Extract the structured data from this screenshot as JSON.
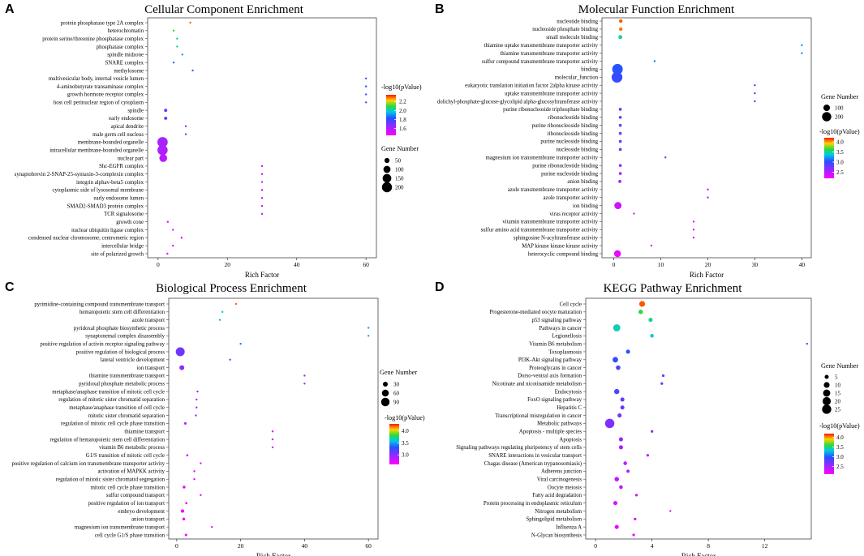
{
  "chart_data": [
    {
      "id": "A",
      "type": "scatter",
      "panel_label": "A",
      "title": "Cellular Component Enrichment",
      "xlabel": "Rich Factor",
      "xlim": [
        -3,
        63
      ],
      "xticks": [
        0,
        20,
        40,
        60
      ],
      "size_legend_title": "Gene Number",
      "size_legend_values": [
        50,
        100,
        150,
        200
      ],
      "size_range": [
        0,
        220
      ],
      "color_legend_title": "-log10(pValue)",
      "color_range": [
        1.45,
        2.35
      ],
      "color_ticks": [
        2.2,
        2.0,
        1.8,
        1.6
      ],
      "points": [
        {
          "term": "protein phosphatase type 2A complex",
          "x": 9.3,
          "size": 2,
          "p": 2.3
        },
        {
          "term": "heterochromatin",
          "x": 4.5,
          "size": 3,
          "p": 2.1
        },
        {
          "term": "protein serine/threonine phosphatase complex",
          "x": 5.5,
          "size": 3,
          "p": 2.05
        },
        {
          "term": "phosphatase complex",
          "x": 5.5,
          "size": 3,
          "p": 2.05
        },
        {
          "term": "spindle midzone",
          "x": 7,
          "size": 2,
          "p": 1.9
        },
        {
          "term": "SNARE complex",
          "x": 4.5,
          "size": 3,
          "p": 1.85
        },
        {
          "term": "methylosome",
          "x": 10,
          "size": 2,
          "p": 1.85
        },
        {
          "term": "multivesicular body, internal vesicle lumen",
          "x": 60,
          "size": 1,
          "p": 1.8
        },
        {
          "term": "4-aminobutyrate transaminase complex",
          "x": 60,
          "size": 1,
          "p": 1.8
        },
        {
          "term": "growth hormone receptor complex",
          "x": 60,
          "size": 1,
          "p": 1.8
        },
        {
          "term": "host cell perinuclear region of cytoplasm",
          "x": 60,
          "size": 1,
          "p": 1.8
        },
        {
          "term": "spindle",
          "x": 2.2,
          "size": 20,
          "p": 1.7
        },
        {
          "term": "early endosome",
          "x": 2.2,
          "size": 20,
          "p": 1.7
        },
        {
          "term": "apical dendrite",
          "x": 8,
          "size": 3,
          "p": 1.65
        },
        {
          "term": "male germ cell nucleus",
          "x": 8,
          "size": 3,
          "p": 1.65
        },
        {
          "term": "membrane-bounded organelle",
          "x": 1.3,
          "size": 210,
          "p": 1.62
        },
        {
          "term": "intracellular membrane-bounded organelle",
          "x": 1.3,
          "size": 205,
          "p": 1.6
        },
        {
          "term": "nuclear part",
          "x": 1.5,
          "size": 120,
          "p": 1.58
        },
        {
          "term": "Shc-EGFR complex",
          "x": 30,
          "size": 1,
          "p": 1.55
        },
        {
          "term": "synaptobrevin 2-SNAP-25-syntaxin-3-complexin complex",
          "x": 30,
          "size": 1,
          "p": 1.55
        },
        {
          "term": "integrin alphav-beta5 complex",
          "x": 30,
          "size": 1,
          "p": 1.55
        },
        {
          "term": "cytoplasmic side of lysosomal membrane",
          "x": 30,
          "size": 1,
          "p": 1.55
        },
        {
          "term": "early endosome lumen",
          "x": 30,
          "size": 1,
          "p": 1.55
        },
        {
          "term": "SMAD2-SMAD3 protein complex",
          "x": 30,
          "size": 1,
          "p": 1.55
        },
        {
          "term": "TCR signalosome",
          "x": 30,
          "size": 1,
          "p": 1.55
        },
        {
          "term": "growth cone",
          "x": 2.8,
          "size": 8,
          "p": 1.52
        },
        {
          "term": "nuclear ubiquitin ligase complex",
          "x": 4.3,
          "size": 3,
          "p": 1.52
        },
        {
          "term": "condensed nuclear chromosome, centromeric region",
          "x": 6.8,
          "size": 3,
          "p": 1.5
        },
        {
          "term": "intercellular bridge",
          "x": 4.3,
          "size": 4,
          "p": 1.5
        },
        {
          "term": "site of polarized growth",
          "x": 2.7,
          "size": 8,
          "p": 1.48
        }
      ]
    },
    {
      "id": "B",
      "type": "scatter",
      "panel_label": "B",
      "title": "Molecular Function Enrichment",
      "xlabel": "Rich Factor",
      "xlim": [
        -2.5,
        42
      ],
      "xticks": [
        0,
        10,
        20,
        30,
        40
      ],
      "size_legend_title": "Gene Number",
      "size_legend_values": [
        100,
        200
      ],
      "size_range": [
        0,
        260
      ],
      "color_legend_title": "-log10(pValue)",
      "color_range": [
        2.2,
        4.2
      ],
      "color_ticks": [
        4.0,
        3.5,
        3.0,
        2.5
      ],
      "points": [
        {
          "term": "nucleotide binding",
          "x": 1.5,
          "size": 30,
          "p": 4.1
        },
        {
          "term": "nucleoside phosphate binding",
          "x": 1.5,
          "size": 30,
          "p": 4.05
        },
        {
          "term": "small molecule binding",
          "x": 1.4,
          "size": 35,
          "p": 3.5
        },
        {
          "term": "thiamine uptake transmembrane transporter activity",
          "x": 40,
          "size": 1,
          "p": 3.2
        },
        {
          "term": "thiamine transmembrane transporter activity",
          "x": 40,
          "size": 1,
          "p": 3.2
        },
        {
          "term": "sulfur compound transmembrane transporter activity",
          "x": 8.7,
          "size": 2,
          "p": 3.15
        },
        {
          "term": "binding",
          "x": 0.8,
          "size": 260,
          "p": 3.05
        },
        {
          "term": "molecular_function",
          "x": 0.7,
          "size": 270,
          "p": 3.0
        },
        {
          "term": "eukaryotic translation initiation factor 2alpha kinase activity",
          "x": 30,
          "size": 1,
          "p": 2.95
        },
        {
          "term": "uptake transmembrane transporter activity",
          "x": 30,
          "size": 1,
          "p": 2.95
        },
        {
          "term": "dolichyl-phosphate-glucose-glycolipid alpha-glucosyltransferase activity",
          "x": 30,
          "size": 1,
          "p": 2.95
        },
        {
          "term": "purine ribonucleoside triphosphate binding",
          "x": 1.4,
          "size": 20,
          "p": 2.85
        },
        {
          "term": "ribonucleotide binding",
          "x": 1.4,
          "size": 20,
          "p": 2.8
        },
        {
          "term": "purine ribonucleoside binding",
          "x": 1.4,
          "size": 20,
          "p": 2.8
        },
        {
          "term": "ribonucleoside binding",
          "x": 1.4,
          "size": 20,
          "p": 2.8
        },
        {
          "term": "purine nucleoside binding",
          "x": 1.4,
          "size": 20,
          "p": 2.8
        },
        {
          "term": "nucleoside binding",
          "x": 1.4,
          "size": 20,
          "p": 2.8
        },
        {
          "term": "magnesium ion transmembrane transporter activity",
          "x": 11,
          "size": 2,
          "p": 2.7
        },
        {
          "term": "purine ribonucleotide binding",
          "x": 1.4,
          "size": 20,
          "p": 2.65
        },
        {
          "term": "purine nucleotide binding",
          "x": 1.4,
          "size": 20,
          "p": 2.6
        },
        {
          "term": "anion binding",
          "x": 1.3,
          "size": 22,
          "p": 2.55
        },
        {
          "term": "azole transmembrane transporter activity",
          "x": 20,
          "size": 1,
          "p": 2.45
        },
        {
          "term": "azole transporter activity",
          "x": 20,
          "size": 1,
          "p": 2.45
        },
        {
          "term": "ion binding",
          "x": 0.9,
          "size": 120,
          "p": 2.4
        },
        {
          "term": "virus receptor activity",
          "x": 4.3,
          "size": 3,
          "p": 2.4
        },
        {
          "term": "vitamin transmembrane transporter activity",
          "x": 17,
          "size": 1,
          "p": 2.35
        },
        {
          "term": "sulfur amino acid transmembrane transporter activity",
          "x": 17,
          "size": 1,
          "p": 2.35
        },
        {
          "term": "sphingosine N-acyltransferase activity",
          "x": 17,
          "size": 1,
          "p": 2.35
        },
        {
          "term": "MAP kinase kinase kinase activity",
          "x": 8,
          "size": 2,
          "p": 2.3
        },
        {
          "term": "heterocyclic compound binding",
          "x": 0.8,
          "size": 110,
          "p": 2.3
        }
      ]
    },
    {
      "id": "C",
      "type": "scatter",
      "panel_label": "C",
      "title": "Biological Process Enrichment",
      "xlabel": "Rich Factor",
      "xlim": [
        -2.5,
        63
      ],
      "xticks": [
        0,
        20,
        40,
        60
      ],
      "size_legend_title": "Gene Number",
      "size_legend_values": [
        30,
        60,
        90
      ],
      "size_range": [
        0,
        100
      ],
      "color_legend_title": "-log10(pValue)",
      "color_range": [
        2.6,
        4.3
      ],
      "color_ticks": [
        4.0,
        3.5,
        3.0
      ],
      "points": [
        {
          "term": "pyrimidine-containing compound transmembrane transport",
          "x": 18.6,
          "size": 2,
          "p": 4.2
        },
        {
          "term": "hematopoietic stem cell differentiation",
          "x": 14.3,
          "size": 2,
          "p": 3.6
        },
        {
          "term": "azole transport",
          "x": 13.5,
          "size": 2,
          "p": 3.55
        },
        {
          "term": "pyridoxal phosphate biosynthetic process",
          "x": 60,
          "size": 1,
          "p": 3.5
        },
        {
          "term": "synaptonemal complex disassembly",
          "x": 60,
          "size": 1,
          "p": 3.5
        },
        {
          "term": "positive regulation of activin receptor signaling pathway",
          "x": 20,
          "size": 1,
          "p": 3.4
        },
        {
          "term": "positive regulation of biological process",
          "x": 1.1,
          "size": 100,
          "p": 3.1
        },
        {
          "term": "lateral ventricle development",
          "x": 16.7,
          "size": 2,
          "p": 3.05
        },
        {
          "term": "ion transport",
          "x": 1.6,
          "size": 30,
          "p": 3.0
        },
        {
          "term": "thiamine transmembrane transport",
          "x": 40,
          "size": 1,
          "p": 3.0
        },
        {
          "term": "pyridoxal phosphate metabolic process",
          "x": 40,
          "size": 1,
          "p": 3.0
        },
        {
          "term": "metaphase/anaphase transition of mitotic cell cycle",
          "x": 6.5,
          "size": 3,
          "p": 2.9
        },
        {
          "term": "regulation of mitotic sister chromatid separation",
          "x": 6.2,
          "size": 3,
          "p": 2.85
        },
        {
          "term": "metaphase/anaphase transition of cell cycle",
          "x": 6.2,
          "size": 3,
          "p": 2.85
        },
        {
          "term": "mitotic sister chromatid separation",
          "x": 6,
          "size": 3,
          "p": 2.85
        },
        {
          "term": "regulation of mitotic cell cycle phase transition",
          "x": 2.7,
          "size": 8,
          "p": 2.8
        },
        {
          "term": "thiamine transport",
          "x": 30,
          "size": 1,
          "p": 2.75
        },
        {
          "term": "regulation of hematopoietic stem cell differentiation",
          "x": 30,
          "size": 1,
          "p": 2.75
        },
        {
          "term": "vitamin B6 metabolic process",
          "x": 30,
          "size": 1,
          "p": 2.75
        },
        {
          "term": "G1/S transition of mitotic cell cycle",
          "x": 3.3,
          "size": 6,
          "p": 2.72
        },
        {
          "term": "positive regulation of calcium ion transmembrane transporter activity",
          "x": 7.5,
          "size": 2,
          "p": 2.7
        },
        {
          "term": "activation of MAPKK activity",
          "x": 5.5,
          "size": 3,
          "p": 2.7
        },
        {
          "term": "regulation of mitotic sister chromatid segregation",
          "x": 5.5,
          "size": 3,
          "p": 2.7
        },
        {
          "term": "mitotic cell cycle phase transition",
          "x": 2.3,
          "size": 10,
          "p": 2.68
        },
        {
          "term": "sulfur compound transport",
          "x": 7.5,
          "size": 2,
          "p": 2.68
        },
        {
          "term": "positive regulation of ion transport",
          "x": 3,
          "size": 6,
          "p": 2.66
        },
        {
          "term": "embryo development",
          "x": 1.8,
          "size": 15,
          "p": 2.65
        },
        {
          "term": "anion transport",
          "x": 2.2,
          "size": 10,
          "p": 2.65
        },
        {
          "term": "magnesium ion transmembrane transport",
          "x": 11,
          "size": 2,
          "p": 2.62
        },
        {
          "term": "cell cycle G1/S phase transition",
          "x": 2.9,
          "size": 8,
          "p": 2.62
        }
      ]
    },
    {
      "id": "D",
      "type": "scatter",
      "panel_label": "D",
      "title": "KEGG Pathway Enrichment",
      "xlabel": "Rich Factor",
      "xlim": [
        -0.7,
        15.3
      ],
      "xticks": [
        0,
        4,
        8,
        12
      ],
      "size_legend_title": "Gene Number",
      "size_legend_values": [
        5,
        10,
        15,
        20,
        25
      ],
      "size_range": [
        0,
        28
      ],
      "color_legend_title": "-log10(pValue)",
      "color_range": [
        2.1,
        4.2
      ],
      "color_ticks": [
        4.0,
        3.5,
        3.0,
        2.5
      ],
      "points": [
        {
          "term": "Cell cycle",
          "x": 3.3,
          "size": 10,
          "p": 4.1
        },
        {
          "term": "Progesterone-mediated oocyte maturation",
          "x": 3.2,
          "size": 6,
          "p": 3.6
        },
        {
          "term": "p53 signaling pathway",
          "x": 3.9,
          "size": 5,
          "p": 3.5
        },
        {
          "term": "Pathways in cancer",
          "x": 1.5,
          "size": 15,
          "p": 3.4
        },
        {
          "term": "Legionellosis",
          "x": 4.0,
          "size": 4,
          "p": 3.35
        },
        {
          "term": "Vitamin B6 metabolism",
          "x": 15,
          "size": 1,
          "p": 3.0
        },
        {
          "term": "Toxoplasmosis",
          "x": 2.3,
          "size": 5,
          "p": 3.0
        },
        {
          "term": "PI3K-Akt signaling pathway",
          "x": 1.4,
          "size": 9,
          "p": 2.95
        },
        {
          "term": "Proteoglycans in cancer",
          "x": 1.6,
          "size": 6,
          "p": 2.9
        },
        {
          "term": "Dorso-ventral axis formation",
          "x": 4.8,
          "size": 2,
          "p": 2.85
        },
        {
          "term": "Nicotinate and nicotinamide metabolism",
          "x": 4.7,
          "size": 2,
          "p": 2.85
        },
        {
          "term": "Endocytosis",
          "x": 1.5,
          "size": 8,
          "p": 2.85
        },
        {
          "term": "FoxO signaling pathway",
          "x": 1.9,
          "size": 5,
          "p": 2.8
        },
        {
          "term": "Hepatitis C",
          "x": 1.9,
          "size": 5,
          "p": 2.75
        },
        {
          "term": "Transcriptional misregulation in cancer",
          "x": 1.7,
          "size": 5,
          "p": 2.7
        },
        {
          "term": "Metabolic pathways",
          "x": 1.0,
          "size": 26,
          "p": 2.65
        },
        {
          "term": "Apoptosis - multiple species",
          "x": 4.0,
          "size": 2,
          "p": 2.6
        },
        {
          "term": "Apoptosis",
          "x": 1.8,
          "size": 5,
          "p": 2.55
        },
        {
          "term": "Signaling pathways regulating pluripotency of stem cells",
          "x": 1.8,
          "size": 5,
          "p": 2.5
        },
        {
          "term": "SNARE interactions in vesicular transport",
          "x": 3.7,
          "size": 2,
          "p": 2.45
        },
        {
          "term": "Chagas disease (American trypanosomiasis)",
          "x": 2.1,
          "size": 4,
          "p": 2.4
        },
        {
          "term": "Adherens junction",
          "x": 2.3,
          "size": 3,
          "p": 2.4
        },
        {
          "term": "Viral carcinogenesis",
          "x": 1.5,
          "size": 6,
          "p": 2.35
        },
        {
          "term": "Oocyte meiosis",
          "x": 1.8,
          "size": 4,
          "p": 2.35
        },
        {
          "term": "Fatty acid degradation",
          "x": 2.9,
          "size": 2,
          "p": 2.3
        },
        {
          "term": "Protein processing in endoplasmic reticulum",
          "x": 1.4,
          "size": 5,
          "p": 2.3
        },
        {
          "term": "Nitrogen metabolism",
          "x": 5.3,
          "size": 1,
          "p": 2.25
        },
        {
          "term": "Sphingolipid metabolism",
          "x": 2.8,
          "size": 2,
          "p": 2.25
        },
        {
          "term": "Influenza A",
          "x": 1.5,
          "size": 5,
          "p": 2.2
        },
        {
          "term": "N-Glycan biosynthesis",
          "x": 2.7,
          "size": 2,
          "p": 2.2
        }
      ]
    }
  ]
}
